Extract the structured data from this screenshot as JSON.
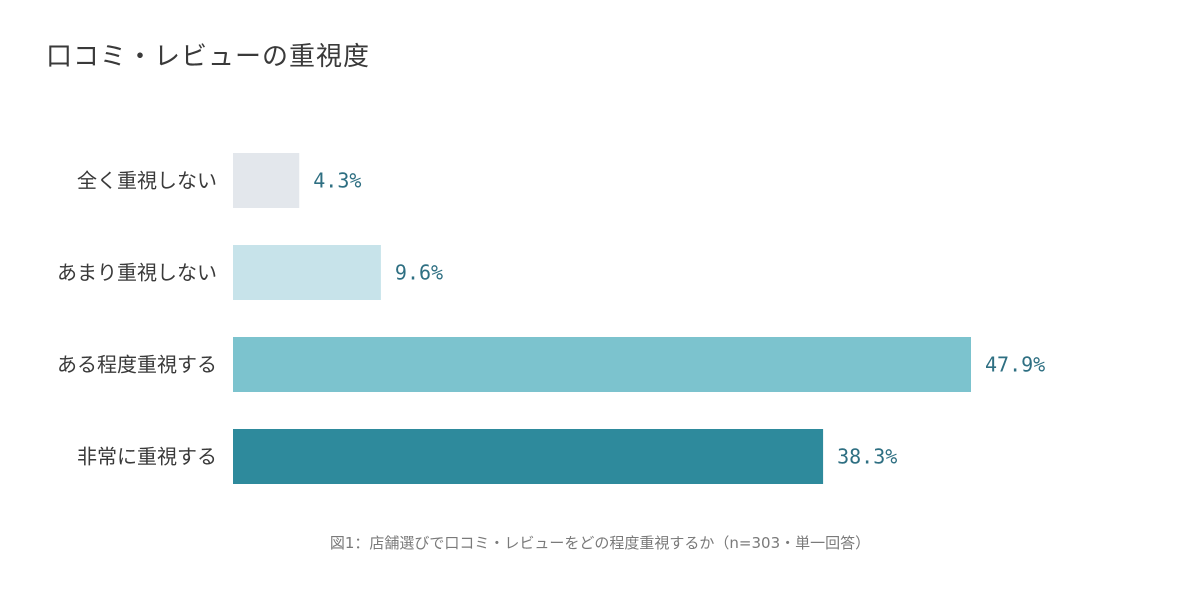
{
  "title": "口コミ・レビューの重視度",
  "caption": "図1：店舗選びで口コミ・レビューをどの程度重視するか（n=303・単一回答）",
  "chart_data": {
    "type": "bar",
    "orientation": "horizontal",
    "title": "口コミ・レビューの重視度",
    "categories": [
      "全く重視しない",
      "あまり重視しない",
      "ある程度重視する",
      "非常に重視する"
    ],
    "values": [
      4.3,
      9.6,
      47.9,
      38.3
    ],
    "value_labels": [
      "4.3%",
      "9.6%",
      "47.9%",
      "38.3%"
    ],
    "unit": "%",
    "colors": [
      "#e3e7ec",
      "#c7e3ea",
      "#7cc3ce",
      "#2e8a9c"
    ],
    "xlim": [
      0,
      50
    ],
    "grid": false,
    "legend": "none"
  }
}
